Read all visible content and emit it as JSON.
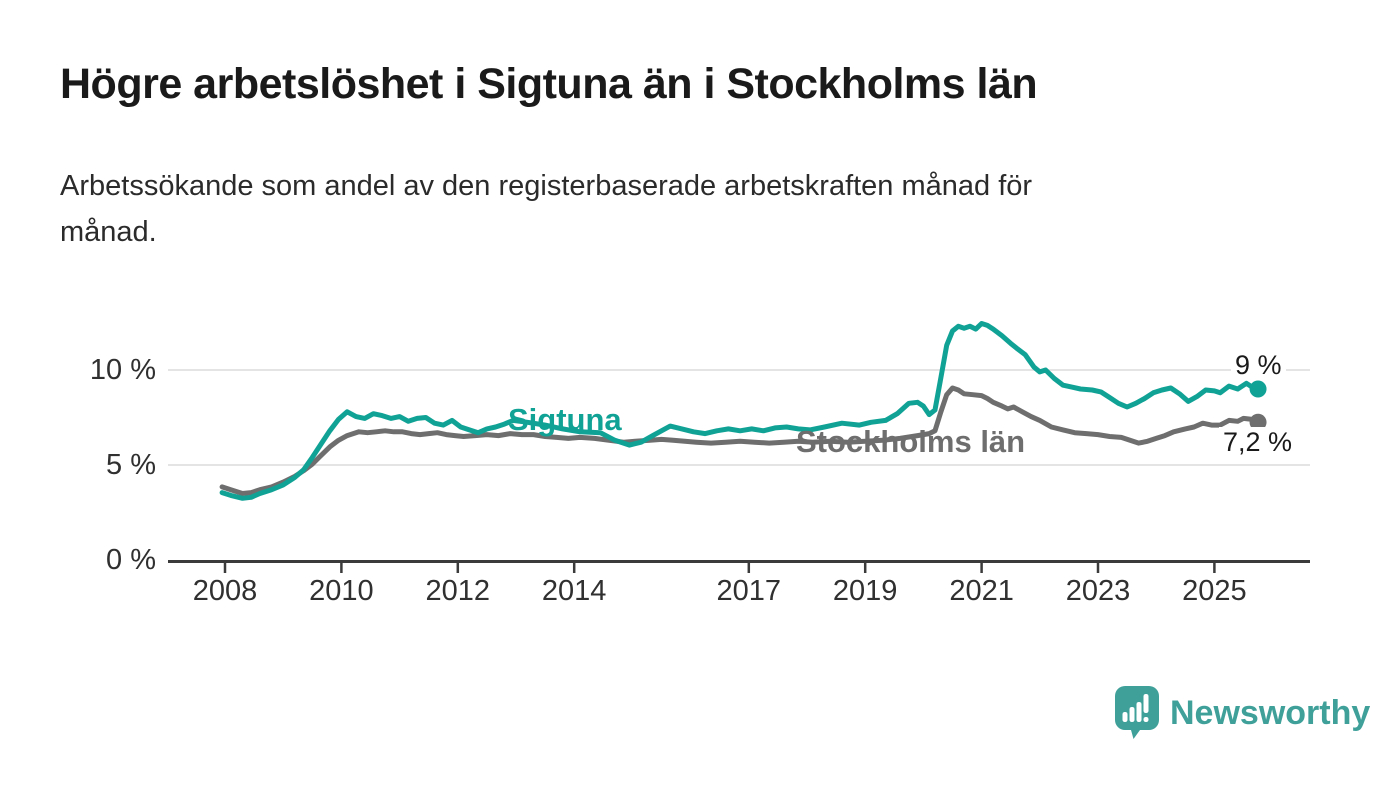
{
  "chart_data": {
    "type": "line",
    "title": "Högre arbetslöshet i Sigtuna än i Stockholms län",
    "subtitle_lines": [
      "Arbetssökande som andel av den registerbaserade arbetskraften månad för",
      "månad."
    ],
    "unit": "%",
    "x_tick_years": [
      2008,
      2010,
      2012,
      2014,
      2017,
      2019,
      2021,
      2023,
      2025
    ],
    "x_tick_labels": [
      "2008",
      "2010",
      "2012",
      "2014",
      "2017",
      "2019",
      "2021",
      "2023",
      "2025"
    ],
    "y_tick_values": [
      0,
      5,
      10
    ],
    "y_tick_labels": [
      "0 %",
      "5 %",
      "10 %"
    ],
    "x_axis_range": [
      2007.9,
      2026.6
    ],
    "y_axis_range": [
      0,
      13
    ],
    "grid": "horizontal-only",
    "legend": "inline-labels-on-lines",
    "series": [
      {
        "name": "Sigtuna",
        "color": "#11a296",
        "end_label": "9 %",
        "end_value": 9.0,
        "points": [
          [
            2007.95,
            3.55
          ],
          [
            2008.1,
            3.4
          ],
          [
            2008.3,
            3.25
          ],
          [
            2008.45,
            3.3
          ],
          [
            2008.6,
            3.5
          ],
          [
            2008.8,
            3.7
          ],
          [
            2009.0,
            3.95
          ],
          [
            2009.2,
            4.35
          ],
          [
            2009.35,
            4.75
          ],
          [
            2009.5,
            5.4
          ],
          [
            2009.65,
            6.1
          ],
          [
            2009.8,
            6.8
          ],
          [
            2009.95,
            7.4
          ],
          [
            2010.1,
            7.8
          ],
          [
            2010.25,
            7.55
          ],
          [
            2010.4,
            7.45
          ],
          [
            2010.55,
            7.7
          ],
          [
            2010.7,
            7.6
          ],
          [
            2010.85,
            7.45
          ],
          [
            2011.0,
            7.55
          ],
          [
            2011.15,
            7.3
          ],
          [
            2011.3,
            7.45
          ],
          [
            2011.45,
            7.5
          ],
          [
            2011.6,
            7.2
          ],
          [
            2011.75,
            7.1
          ],
          [
            2011.9,
            7.35
          ],
          [
            2012.05,
            7.0
          ],
          [
            2012.2,
            6.85
          ],
          [
            2012.35,
            6.7
          ],
          [
            2012.5,
            6.9
          ],
          [
            2012.65,
            7.0
          ],
          [
            2012.8,
            7.15
          ],
          [
            2012.95,
            7.35
          ],
          [
            2013.2,
            7.25
          ],
          [
            2013.5,
            7.1
          ],
          [
            2013.8,
            6.9
          ],
          [
            2014.1,
            6.75
          ],
          [
            2014.45,
            6.7
          ],
          [
            2014.7,
            6.3
          ],
          [
            2014.95,
            6.05
          ],
          [
            2015.15,
            6.2
          ],
          [
            2015.35,
            6.55
          ],
          [
            2015.65,
            7.05
          ],
          [
            2015.85,
            6.9
          ],
          [
            2016.05,
            6.75
          ],
          [
            2016.25,
            6.65
          ],
          [
            2016.45,
            6.8
          ],
          [
            2016.65,
            6.9
          ],
          [
            2016.85,
            6.8
          ],
          [
            2017.05,
            6.9
          ],
          [
            2017.25,
            6.8
          ],
          [
            2017.45,
            6.95
          ],
          [
            2017.65,
            7.0
          ],
          [
            2017.85,
            6.9
          ],
          [
            2018.05,
            6.85
          ],
          [
            2018.3,
            7.0
          ],
          [
            2018.6,
            7.2
          ],
          [
            2018.9,
            7.1
          ],
          [
            2019.1,
            7.25
          ],
          [
            2019.35,
            7.35
          ],
          [
            2019.55,
            7.7
          ],
          [
            2019.75,
            8.25
          ],
          [
            2019.9,
            8.3
          ],
          [
            2020.0,
            8.1
          ],
          [
            2020.1,
            7.65
          ],
          [
            2020.2,
            7.9
          ],
          [
            2020.3,
            9.6
          ],
          [
            2020.4,
            11.3
          ],
          [
            2020.5,
            12.05
          ],
          [
            2020.6,
            12.3
          ],
          [
            2020.7,
            12.2
          ],
          [
            2020.8,
            12.3
          ],
          [
            2020.9,
            12.15
          ],
          [
            2021.0,
            12.45
          ],
          [
            2021.1,
            12.35
          ],
          [
            2021.2,
            12.15
          ],
          [
            2021.35,
            11.8
          ],
          [
            2021.5,
            11.4
          ],
          [
            2021.6,
            11.15
          ],
          [
            2021.75,
            10.8
          ],
          [
            2021.9,
            10.15
          ],
          [
            2022.0,
            9.9
          ],
          [
            2022.1,
            10.0
          ],
          [
            2022.25,
            9.55
          ],
          [
            2022.4,
            9.2
          ],
          [
            2022.55,
            9.1
          ],
          [
            2022.7,
            9.0
          ],
          [
            2022.9,
            8.95
          ],
          [
            2023.05,
            8.85
          ],
          [
            2023.2,
            8.55
          ],
          [
            2023.35,
            8.25
          ],
          [
            2023.5,
            8.05
          ],
          [
            2023.65,
            8.25
          ],
          [
            2023.8,
            8.5
          ],
          [
            2023.95,
            8.8
          ],
          [
            2024.1,
            8.95
          ],
          [
            2024.25,
            9.05
          ],
          [
            2024.4,
            8.75
          ],
          [
            2024.55,
            8.35
          ],
          [
            2024.7,
            8.6
          ],
          [
            2024.85,
            8.95
          ],
          [
            2025.0,
            8.9
          ],
          [
            2025.1,
            8.8
          ],
          [
            2025.25,
            9.15
          ],
          [
            2025.4,
            9.0
          ],
          [
            2025.55,
            9.3
          ],
          [
            2025.65,
            9.1
          ],
          [
            2025.75,
            9.0
          ]
        ]
      },
      {
        "name": "Stockholms län",
        "color": "#6e6e6e",
        "end_label": "7,2 %",
        "end_value": 7.2,
        "points": [
          [
            2007.95,
            3.85
          ],
          [
            2008.1,
            3.7
          ],
          [
            2008.3,
            3.5
          ],
          [
            2008.45,
            3.55
          ],
          [
            2008.6,
            3.7
          ],
          [
            2008.8,
            3.85
          ],
          [
            2009.0,
            4.1
          ],
          [
            2009.2,
            4.4
          ],
          [
            2009.35,
            4.7
          ],
          [
            2009.5,
            5.05
          ],
          [
            2009.65,
            5.5
          ],
          [
            2009.8,
            5.95
          ],
          [
            2009.95,
            6.3
          ],
          [
            2010.1,
            6.55
          ],
          [
            2010.3,
            6.75
          ],
          [
            2010.45,
            6.7
          ],
          [
            2010.6,
            6.75
          ],
          [
            2010.75,
            6.8
          ],
          [
            2010.9,
            6.75
          ],
          [
            2011.05,
            6.75
          ],
          [
            2011.2,
            6.65
          ],
          [
            2011.35,
            6.6
          ],
          [
            2011.5,
            6.65
          ],
          [
            2011.65,
            6.7
          ],
          [
            2011.8,
            6.6
          ],
          [
            2011.95,
            6.55
          ],
          [
            2012.1,
            6.5
          ],
          [
            2012.3,
            6.55
          ],
          [
            2012.5,
            6.6
          ],
          [
            2012.7,
            6.55
          ],
          [
            2012.9,
            6.65
          ],
          [
            2013.1,
            6.6
          ],
          [
            2013.3,
            6.6
          ],
          [
            2013.5,
            6.5
          ],
          [
            2013.7,
            6.45
          ],
          [
            2013.9,
            6.4
          ],
          [
            2014.1,
            6.45
          ],
          [
            2014.35,
            6.4
          ],
          [
            2014.6,
            6.3
          ],
          [
            2014.85,
            6.2
          ],
          [
            2015.05,
            6.25
          ],
          [
            2015.3,
            6.3
          ],
          [
            2015.5,
            6.35
          ],
          [
            2015.7,
            6.3
          ],
          [
            2015.9,
            6.25
          ],
          [
            2016.1,
            6.2
          ],
          [
            2016.35,
            6.15
          ],
          [
            2016.6,
            6.2
          ],
          [
            2016.85,
            6.25
          ],
          [
            2017.1,
            6.2
          ],
          [
            2017.35,
            6.15
          ],
          [
            2017.6,
            6.2
          ],
          [
            2017.85,
            6.25
          ],
          [
            2018.1,
            6.2
          ],
          [
            2018.4,
            6.25
          ],
          [
            2018.7,
            6.2
          ],
          [
            2019.0,
            6.25
          ],
          [
            2019.3,
            6.3
          ],
          [
            2019.6,
            6.4
          ],
          [
            2019.9,
            6.55
          ],
          [
            2020.1,
            6.65
          ],
          [
            2020.2,
            6.8
          ],
          [
            2020.3,
            7.8
          ],
          [
            2020.4,
            8.7
          ],
          [
            2020.5,
            9.05
          ],
          [
            2020.6,
            8.95
          ],
          [
            2020.7,
            8.75
          ],
          [
            2020.85,
            8.7
          ],
          [
            2021.0,
            8.65
          ],
          [
            2021.1,
            8.5
          ],
          [
            2021.2,
            8.3
          ],
          [
            2021.35,
            8.1
          ],
          [
            2021.45,
            7.95
          ],
          [
            2021.55,
            8.05
          ],
          [
            2021.7,
            7.8
          ],
          [
            2021.85,
            7.55
          ],
          [
            2022.0,
            7.35
          ],
          [
            2022.2,
            7.0
          ],
          [
            2022.4,
            6.85
          ],
          [
            2022.6,
            6.7
          ],
          [
            2022.8,
            6.65
          ],
          [
            2023.0,
            6.6
          ],
          [
            2023.2,
            6.5
          ],
          [
            2023.4,
            6.45
          ],
          [
            2023.55,
            6.3
          ],
          [
            2023.7,
            6.15
          ],
          [
            2023.85,
            6.25
          ],
          [
            2024.0,
            6.4
          ],
          [
            2024.15,
            6.55
          ],
          [
            2024.3,
            6.75
          ],
          [
            2024.5,
            6.9
          ],
          [
            2024.65,
            7.0
          ],
          [
            2024.8,
            7.2
          ],
          [
            2024.95,
            7.1
          ],
          [
            2025.1,
            7.1
          ],
          [
            2025.25,
            7.35
          ],
          [
            2025.4,
            7.3
          ],
          [
            2025.5,
            7.45
          ],
          [
            2025.65,
            7.4
          ],
          [
            2025.75,
            7.25
          ]
        ]
      }
    ]
  },
  "branding": {
    "name": "Newsworthy"
  },
  "colors": {
    "sigtuna_line": "#11a296",
    "stockholm_line": "#6e6e6e",
    "gridline": "#dcdcdc",
    "axis": "#3b3b3b",
    "title_text": "#1a1a1a",
    "brand_teal": "#3fa09a"
  }
}
